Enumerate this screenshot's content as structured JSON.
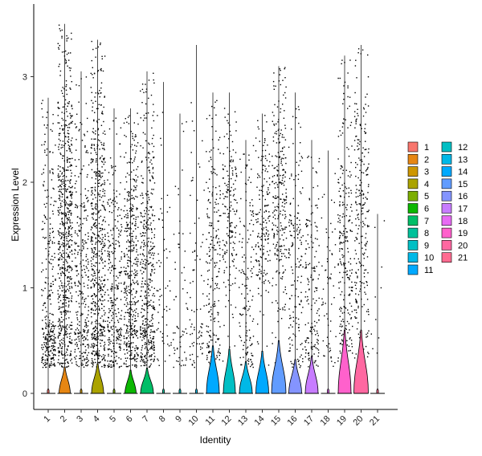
{
  "chart_data": {
    "type": "violin",
    "xlabel": "Identity",
    "ylabel": "Expression Level",
    "ylim": [
      0,
      3.5
    ],
    "yticks": [
      0,
      1,
      2,
      3
    ],
    "grid": false,
    "legend_placement": "right",
    "jitter_points": true,
    "categories": [
      "1",
      "2",
      "3",
      "4",
      "5",
      "6",
      "7",
      "8",
      "9",
      "10",
      "11",
      "12",
      "13",
      "14",
      "15",
      "16",
      "17",
      "18",
      "19",
      "20",
      "21"
    ],
    "colors": [
      "#F8766D",
      "#E68613",
      "#CD9600",
      "#ABA300",
      "#7CAE00",
      "#0CB702",
      "#00BE67",
      "#00C19A",
      "#00BFC4",
      "#00B8E7",
      "#00A9FF",
      "#8494FF",
      "#C77CFF",
      "#ED68ED",
      "#FF61CC",
      "#FF68A1",
      "#F8766D",
      "#E68613",
      "#FF61C3",
      "#FF68A1",
      "#FF6C91"
    ],
    "series": [
      {
        "name": "1",
        "max": 2.8,
        "median": 0.0,
        "point_center": 0.7,
        "point_count": 320,
        "bulge_width": 0.1,
        "bulge_height": 0.04
      },
      {
        "name": "2",
        "max": 3.5,
        "median": 0.0,
        "point_center": 1.5,
        "point_count": 700,
        "bulge_width": 0.7,
        "bulge_height": 0.25
      },
      {
        "name": "3",
        "max": 3.05,
        "median": 0.0,
        "point_center": 1.0,
        "point_count": 300,
        "bulge_width": 0.1,
        "bulge_height": 0.04
      },
      {
        "name": "4",
        "max": 3.35,
        "median": 0.0,
        "point_center": 1.3,
        "point_count": 600,
        "bulge_width": 0.75,
        "bulge_height": 0.28
      },
      {
        "name": "5",
        "max": 2.7,
        "median": 0.0,
        "point_center": 1.0,
        "point_count": 300,
        "bulge_width": 0.1,
        "bulge_height": 0.04
      },
      {
        "name": "6",
        "max": 2.7,
        "median": 0.0,
        "point_center": 1.1,
        "point_count": 450,
        "bulge_width": 0.7,
        "bulge_height": 0.22
      },
      {
        "name": "7",
        "max": 3.05,
        "median": 0.0,
        "point_center": 1.1,
        "point_count": 450,
        "bulge_width": 0.8,
        "bulge_height": 0.24
      },
      {
        "name": "8",
        "max": 2.95,
        "median": 0.0,
        "point_center": 1.2,
        "point_count": 60,
        "bulge_width": 0.1,
        "bulge_height": 0.04
      },
      {
        "name": "9",
        "max": 2.65,
        "median": 0.0,
        "point_center": 0.8,
        "point_count": 60,
        "bulge_width": 0.1,
        "bulge_height": 0.04
      },
      {
        "name": "10",
        "max": 3.3,
        "median": 0.0,
        "point_center": 0.9,
        "point_count": 80,
        "bulge_width": 0.1,
        "bulge_height": 0.04
      },
      {
        "name": "11",
        "max": 2.85,
        "median": 0.0,
        "point_center": 1.2,
        "point_count": 220,
        "bulge_width": 0.8,
        "bulge_height": 0.45
      },
      {
        "name": "12",
        "max": 2.85,
        "median": 0.0,
        "point_center": 1.6,
        "point_count": 180,
        "bulge_width": 0.75,
        "bulge_height": 0.42
      },
      {
        "name": "13",
        "max": 2.4,
        "median": 0.0,
        "point_center": 1.0,
        "point_count": 150,
        "bulge_width": 0.8,
        "bulge_height": 0.3
      },
      {
        "name": "14",
        "max": 2.65,
        "median": 0.0,
        "point_center": 1.6,
        "point_count": 180,
        "bulge_width": 0.8,
        "bulge_height": 0.4
      },
      {
        "name": "15",
        "max": 3.1,
        "median": 0.0,
        "point_center": 1.8,
        "point_count": 260,
        "bulge_width": 0.9,
        "bulge_height": 0.5
      },
      {
        "name": "16",
        "max": 2.85,
        "median": 0.0,
        "point_center": 1.2,
        "point_count": 170,
        "bulge_width": 0.8,
        "bulge_height": 0.32
      },
      {
        "name": "17",
        "max": 2.4,
        "median": 0.0,
        "point_center": 1.0,
        "point_count": 170,
        "bulge_width": 0.8,
        "bulge_height": 0.35
      },
      {
        "name": "18",
        "max": 2.3,
        "median": 0.0,
        "point_center": 0.9,
        "point_count": 60,
        "bulge_width": 0.1,
        "bulge_height": 0.04
      },
      {
        "name": "19",
        "max": 3.2,
        "median": 0.0,
        "point_center": 1.4,
        "point_count": 250,
        "bulge_width": 0.8,
        "bulge_height": 0.6
      },
      {
        "name": "20",
        "max": 3.3,
        "median": 0.0,
        "point_center": 1.7,
        "point_count": 250,
        "bulge_width": 0.9,
        "bulge_height": 0.6
      },
      {
        "name": "21",
        "max": 1.7,
        "median": 0.0,
        "point_center": 0.4,
        "point_count": 10,
        "bulge_width": 0.1,
        "bulge_height": 0.04
      }
    ]
  },
  "legend": {
    "items": [
      {
        "label": "1",
        "color": "#F8766D"
      },
      {
        "label": "2",
        "color": "#E68613"
      },
      {
        "label": "3",
        "color": "#CD9600"
      },
      {
        "label": "4",
        "color": "#ABA300"
      },
      {
        "label": "5",
        "color": "#7CAE00"
      },
      {
        "label": "6",
        "color": "#0CB702"
      },
      {
        "label": "7",
        "color": "#00BE67"
      },
      {
        "label": "8",
        "color": "#00C19A"
      },
      {
        "label": "9",
        "color": "#00BFC4"
      },
      {
        "label": "10",
        "color": "#00B8E7"
      },
      {
        "label": "11",
        "color": "#00A9FF"
      },
      {
        "label": "12",
        "color": "#00BFC4"
      },
      {
        "label": "13",
        "color": "#00B8E7"
      },
      {
        "label": "14",
        "color": "#00A9FF"
      },
      {
        "label": "15",
        "color": "#619CFF"
      },
      {
        "label": "16",
        "color": "#8494FF"
      },
      {
        "label": "17",
        "color": "#C77CFF"
      },
      {
        "label": "18",
        "color": "#E76BF3"
      },
      {
        "label": "19",
        "color": "#FF61CC"
      },
      {
        "label": "20",
        "color": "#FF68A1"
      },
      {
        "label": "21",
        "color": "#FF6C91"
      }
    ]
  }
}
